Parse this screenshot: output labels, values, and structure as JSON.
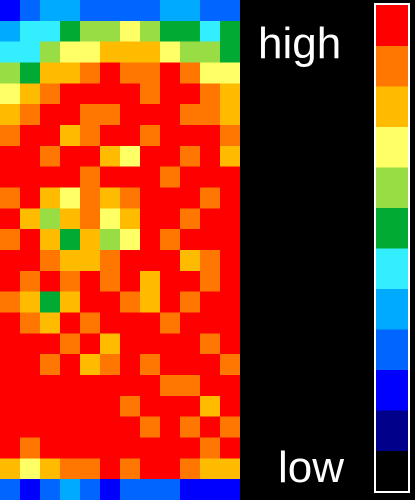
{
  "chart_data": {
    "type": "heatmap",
    "title": "",
    "xlabel": "",
    "ylabel": "",
    "grid": false,
    "colorbar": {
      "max_label": "high",
      "min_label": "low",
      "colors": [
        "#000000",
        "#00008b",
        "#0000ff",
        "#0066ff",
        "#00aaff",
        "#33eeff",
        "#00aa33",
        "#99dd44",
        "#ffff66",
        "#ffbb00",
        "#ff7700",
        "#ff0000"
      ]
    },
    "grid_rows": 24,
    "grid_cols": 12,
    "values": [
      [
        2,
        3,
        4,
        4,
        3,
        3,
        3,
        3,
        4,
        4,
        3,
        3
      ],
      [
        4,
        5,
        5,
        6,
        7,
        7,
        8,
        7,
        6,
        6,
        5,
        6
      ],
      [
        5,
        5,
        7,
        8,
        8,
        9,
        9,
        9,
        8,
        7,
        7,
        6
      ],
      [
        7,
        6,
        9,
        9,
        10,
        11,
        10,
        10,
        11,
        10,
        8,
        8
      ],
      [
        8,
        9,
        10,
        11,
        11,
        11,
        11,
        10,
        11,
        11,
        10,
        9
      ],
      [
        9,
        10,
        11,
        11,
        10,
        10,
        11,
        11,
        11,
        10,
        10,
        9
      ],
      [
        10,
        11,
        11,
        9,
        10,
        11,
        11,
        10,
        11,
        11,
        11,
        10
      ],
      [
        11,
        11,
        10,
        11,
        11,
        9,
        8,
        11,
        11,
        10,
        11,
        9
      ],
      [
        11,
        11,
        11,
        11,
        10,
        11,
        11,
        11,
        10,
        11,
        11,
        11
      ],
      [
        10,
        11,
        9,
        8,
        10,
        9,
        10,
        11,
        11,
        11,
        10,
        11
      ],
      [
        11,
        9,
        7,
        9,
        10,
        8,
        9,
        11,
        11,
        10,
        11,
        11
      ],
      [
        10,
        11,
        9,
        6,
        9,
        7,
        8,
        11,
        10,
        11,
        11,
        11
      ],
      [
        11,
        11,
        10,
        9,
        9,
        10,
        11,
        11,
        11,
        9,
        10,
        11
      ],
      [
        11,
        10,
        11,
        10,
        11,
        10,
        11,
        9,
        11,
        11,
        10,
        11
      ],
      [
        10,
        9,
        6,
        9,
        11,
        11,
        10,
        9,
        11,
        10,
        11,
        11
      ],
      [
        11,
        10,
        9,
        11,
        10,
        11,
        11,
        11,
        10,
        11,
        11,
        11
      ],
      [
        11,
        11,
        11,
        10,
        11,
        9,
        11,
        11,
        11,
        11,
        10,
        11
      ],
      [
        11,
        11,
        10,
        11,
        9,
        10,
        11,
        10,
        11,
        11,
        11,
        10
      ],
      [
        11,
        11,
        11,
        11,
        11,
        11,
        11,
        11,
        10,
        10,
        11,
        11
      ],
      [
        11,
        11,
        11,
        11,
        11,
        11,
        10,
        11,
        11,
        11,
        9,
        11
      ],
      [
        11,
        11,
        11,
        11,
        11,
        11,
        11,
        10,
        11,
        10,
        11,
        10
      ],
      [
        11,
        10,
        11,
        11,
        11,
        11,
        11,
        11,
        11,
        11,
        10,
        11
      ],
      [
        9,
        8,
        9,
        10,
        10,
        11,
        10,
        11,
        11,
        10,
        9,
        9
      ],
      [
        3,
        2,
        3,
        4,
        3,
        2,
        3,
        3,
        3,
        2,
        2,
        2
      ]
    ]
  }
}
